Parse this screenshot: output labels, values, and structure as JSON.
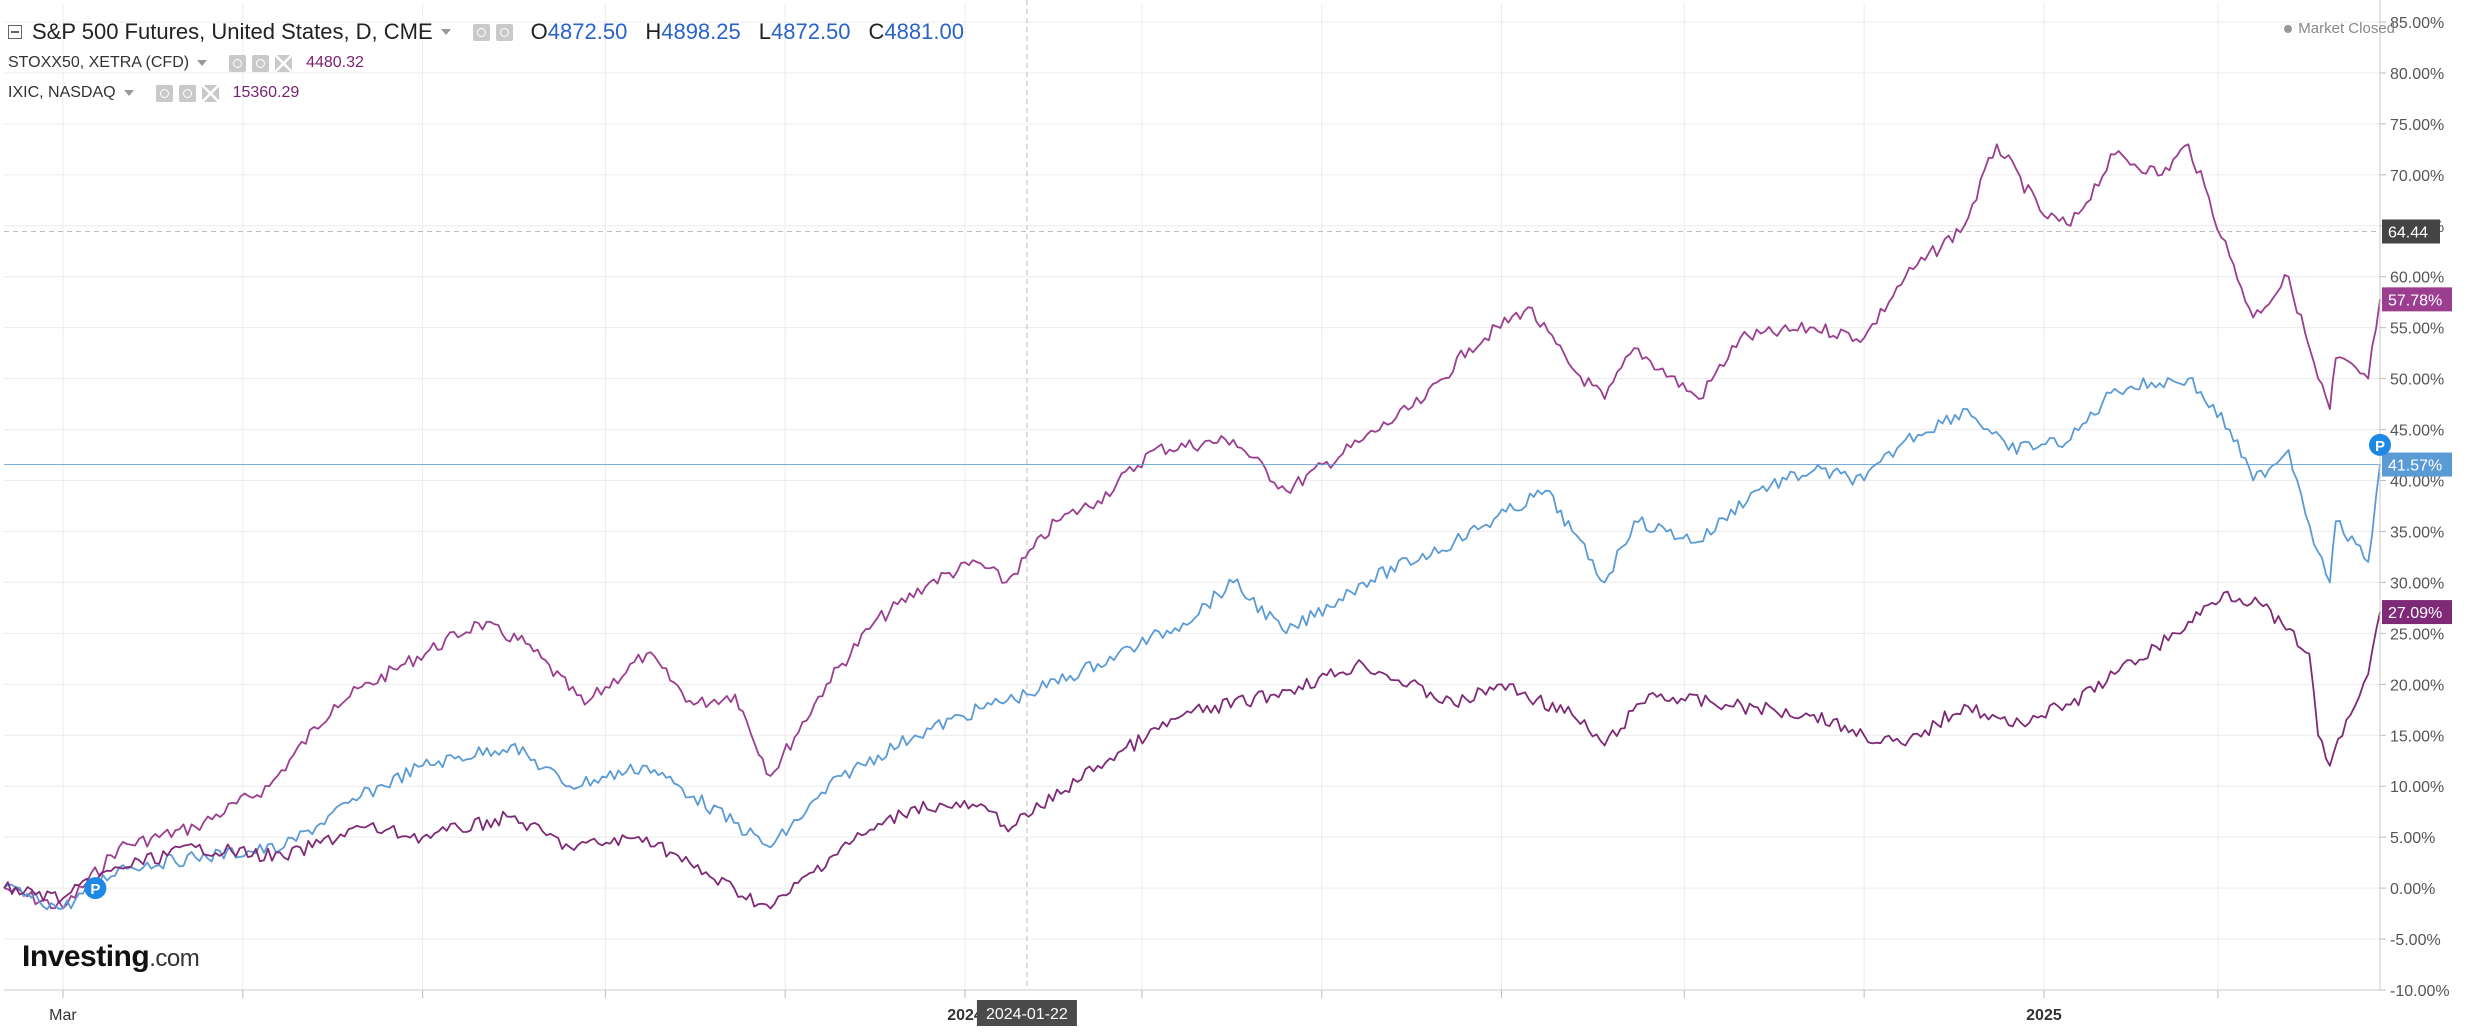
{
  "legend": {
    "main_title": "S&P 500 Futures, United States, D, CME",
    "ohlc": [
      {
        "key": "O",
        "value": "4872.50"
      },
      {
        "key": "H",
        "value": "4898.25"
      },
      {
        "key": "L",
        "value": "4872.50"
      },
      {
        "key": "C",
        "value": "4881.00"
      }
    ],
    "overlays": [
      {
        "name": "STOXX50, XETRA (CFD)",
        "value": "4480.32"
      },
      {
        "name": "IXIC, NASDAQ",
        "value": "15360.29"
      }
    ]
  },
  "market_status": "Market Closed",
  "logo": {
    "text": "Investing",
    "suffix": ".com"
  },
  "colors": {
    "ixic": "#9b3e8f",
    "stoxx": "#7f2a76",
    "spx": "#5b9bd5",
    "grid": "#ececec",
    "axis_text": "#555555",
    "last_price_marker": "#444444",
    "dividend_marker": "#1e88e5"
  },
  "crosshair": {
    "x_label": "2024-01-22",
    "y_label": "64.44"
  },
  "dividend_marker_letter": "P",
  "chart_data": {
    "type": "line",
    "y_unit": "%",
    "ylim": [
      -10,
      85
    ],
    "yticks": [
      "85.00%",
      "80.00%",
      "75.00%",
      "70.00%",
      "65.00%",
      "60.00%",
      "55.00%",
      "50.00%",
      "45.00%",
      "40.00%",
      "35.00%",
      "30.00%",
      "25.00%",
      "20.00%",
      "15.00%",
      "10.00%",
      "5.00%",
      "0.00%",
      "-5.00%",
      "-10.00%"
    ],
    "x_range": [
      "2023-02-09",
      "2025-04-25"
    ],
    "x_tick_labels": [
      {
        "date": "2023-03-01",
        "label": "Mar"
      },
      {
        "date": "2024-01-01",
        "label": "2024"
      },
      {
        "date": "2025-01-01",
        "label": "2025"
      }
    ],
    "x_minor_ticks": [
      "2023-05-01",
      "2023-07-01",
      "2023-09-01",
      "2023-11-01",
      "2024-03-01",
      "2024-05-01",
      "2024-07-01",
      "2024-09-01",
      "2024-11-01",
      "2025-03-01"
    ],
    "series": [
      {
        "key": "ixic",
        "last_label": "57.78%",
        "points": [
          [
            "2023-02-09",
            0
          ],
          [
            "2023-03-01",
            -2
          ],
          [
            "2023-03-20",
            4
          ],
          [
            "2023-04-15",
            6
          ],
          [
            "2023-05-10",
            10
          ],
          [
            "2023-06-01",
            18
          ],
          [
            "2023-06-25",
            22
          ],
          [
            "2023-07-20",
            26
          ],
          [
            "2023-08-05",
            24
          ],
          [
            "2023-08-25",
            18
          ],
          [
            "2023-09-15",
            23
          ],
          [
            "2023-10-01",
            18
          ],
          [
            "2023-10-15",
            19
          ],
          [
            "2023-10-27",
            11
          ],
          [
            "2023-11-15",
            20
          ],
          [
            "2023-12-01",
            26
          ],
          [
            "2023-12-20",
            30
          ],
          [
            "2024-01-05",
            32
          ],
          [
            "2024-01-15",
            30
          ],
          [
            "2024-02-01",
            36
          ],
          [
            "2024-02-15",
            38
          ],
          [
            "2024-03-05",
            43
          ],
          [
            "2024-04-01",
            44
          ],
          [
            "2024-04-19",
            39
          ],
          [
            "2024-05-15",
            44
          ],
          [
            "2024-06-05",
            48
          ],
          [
            "2024-06-20",
            53
          ],
          [
            "2024-07-10",
            57
          ],
          [
            "2024-07-25",
            51
          ],
          [
            "2024-08-05",
            48
          ],
          [
            "2024-08-15",
            53
          ],
          [
            "2024-09-06",
            48
          ],
          [
            "2024-09-20",
            54
          ],
          [
            "2024-10-15",
            55
          ],
          [
            "2024-11-01",
            54
          ],
          [
            "2024-11-15",
            60
          ],
          [
            "2024-12-05",
            65
          ],
          [
            "2024-12-16",
            73
          ],
          [
            "2025-01-01",
            66
          ],
          [
            "2025-01-10",
            65
          ],
          [
            "2025-01-25",
            72
          ],
          [
            "2025-02-10",
            70
          ],
          [
            "2025-02-19",
            73
          ],
          [
            "2025-03-05",
            62
          ],
          [
            "2025-03-13",
            56
          ],
          [
            "2025-03-25",
            60
          ],
          [
            "2025-04-04",
            50
          ],
          [
            "2025-04-08",
            47
          ],
          [
            "2025-04-10",
            52
          ],
          [
            "2025-04-21",
            50
          ],
          [
            "2025-04-25",
            57.78
          ]
        ]
      },
      {
        "key": "spx",
        "last_label": "41.57%",
        "points": [
          [
            "2023-02-09",
            0
          ],
          [
            "2023-03-01",
            -2
          ],
          [
            "2023-03-20",
            2
          ],
          [
            "2023-04-15",
            3
          ],
          [
            "2023-05-15",
            4
          ],
          [
            "2023-06-10",
            9
          ],
          [
            "2023-07-01",
            12
          ],
          [
            "2023-07-31",
            14
          ],
          [
            "2023-08-20",
            10
          ],
          [
            "2023-09-15",
            12
          ],
          [
            "2023-10-01",
            9
          ],
          [
            "2023-10-27",
            4
          ],
          [
            "2023-11-20",
            11
          ],
          [
            "2023-12-15",
            15
          ],
          [
            "2024-01-10",
            18
          ],
          [
            "2024-01-22",
            19
          ],
          [
            "2024-02-15",
            22
          ],
          [
            "2024-03-15",
            26
          ],
          [
            "2024-04-01",
            30
          ],
          [
            "2024-04-19",
            25
          ],
          [
            "2024-05-15",
            30
          ],
          [
            "2024-06-15",
            34
          ],
          [
            "2024-07-16",
            39
          ],
          [
            "2024-07-25",
            35
          ],
          [
            "2024-08-05",
            30
          ],
          [
            "2024-08-15",
            36
          ],
          [
            "2024-09-06",
            34
          ],
          [
            "2024-09-25",
            39
          ],
          [
            "2024-10-15",
            41
          ],
          [
            "2024-11-01",
            40
          ],
          [
            "2024-11-15",
            44
          ],
          [
            "2024-12-06",
            47
          ],
          [
            "2024-12-20",
            43
          ],
          [
            "2025-01-10",
            44
          ],
          [
            "2025-01-25",
            49
          ],
          [
            "2025-02-19",
            50
          ],
          [
            "2025-03-05",
            45
          ],
          [
            "2025-03-13",
            40
          ],
          [
            "2025-03-25",
            43
          ],
          [
            "2025-04-04",
            33
          ],
          [
            "2025-04-08",
            30
          ],
          [
            "2025-04-10",
            36
          ],
          [
            "2025-04-21",
            32
          ],
          [
            "2025-04-25",
            41.57
          ]
        ]
      },
      {
        "key": "stoxx",
        "last_label": "27.09%",
        "points": [
          [
            "2023-02-09",
            0
          ],
          [
            "2023-03-01",
            -1
          ],
          [
            "2023-03-20",
            2
          ],
          [
            "2023-04-15",
            4
          ],
          [
            "2023-05-15",
            3
          ],
          [
            "2023-06-10",
            6
          ],
          [
            "2023-07-01",
            5
          ],
          [
            "2023-07-31",
            7
          ],
          [
            "2023-08-20",
            4
          ],
          [
            "2023-09-15",
            5
          ],
          [
            "2023-10-01",
            2
          ],
          [
            "2023-10-27",
            -2
          ],
          [
            "2023-11-20",
            4
          ],
          [
            "2023-12-15",
            8
          ],
          [
            "2024-01-05",
            8
          ],
          [
            "2024-01-17",
            6
          ],
          [
            "2024-02-15",
            12
          ],
          [
            "2024-03-15",
            17
          ],
          [
            "2024-04-15",
            19
          ],
          [
            "2024-05-15",
            22
          ],
          [
            "2024-06-15",
            18
          ],
          [
            "2024-07-01",
            20
          ],
          [
            "2024-07-25",
            17
          ],
          [
            "2024-08-05",
            14
          ],
          [
            "2024-08-20",
            19
          ],
          [
            "2024-09-15",
            18
          ],
          [
            "2024-10-15",
            17
          ],
          [
            "2024-11-01",
            15
          ],
          [
            "2024-11-15",
            14
          ],
          [
            "2024-12-05",
            18
          ],
          [
            "2024-12-20",
            16
          ],
          [
            "2025-01-10",
            18
          ],
          [
            "2025-01-25",
            21
          ],
          [
            "2025-02-15",
            25
          ],
          [
            "2025-03-03",
            29
          ],
          [
            "2025-03-15",
            28
          ],
          [
            "2025-04-01",
            23
          ],
          [
            "2025-04-04",
            15
          ],
          [
            "2025-04-08",
            12
          ],
          [
            "2025-04-15",
            17
          ],
          [
            "2025-04-21",
            21
          ],
          [
            "2025-04-25",
            27.09
          ]
        ]
      }
    ]
  }
}
